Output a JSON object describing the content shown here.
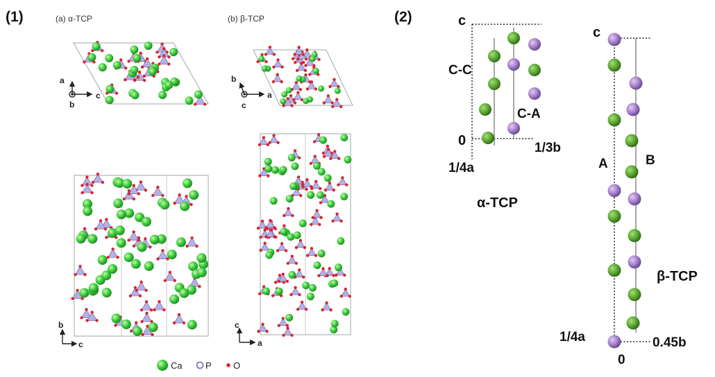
{
  "panel1": {
    "label": "(1)",
    "alpha_title": "(a) α-TCP",
    "beta_title": "(b) β-TCP",
    "alpha_top_axes": {
      "a": "a",
      "b": "b",
      "c": "c"
    },
    "alpha_bottom_axes": {
      "b": "b",
      "c": "c"
    },
    "beta_top_axes": {
      "b": "b",
      "c": "c",
      "a": "a"
    },
    "beta_bottom_axes": {
      "c": "c",
      "a": "a"
    }
  },
  "legend": {
    "ca": "Ca",
    "p": "P",
    "o": "O",
    "colors": {
      "ca": "#3fcf3f",
      "p": "#9a8fd6",
      "o": "#d8262e"
    }
  },
  "panel2": {
    "label": "(2)",
    "alpha": {
      "name": "α-TCP",
      "c_label": "c",
      "zero_label": "0",
      "a_label": "1/4a",
      "b_label": "1/3b",
      "column1": "C-C",
      "column2": "C-A"
    },
    "beta": {
      "name": "β-TCP",
      "c_label": "c",
      "zero_label": "0",
      "a_label": "1/4a",
      "b_label": "0.45b",
      "column1": "A",
      "column2": "B"
    },
    "colors": {
      "green": "#5aa832",
      "purple": "#9a70c0"
    }
  }
}
